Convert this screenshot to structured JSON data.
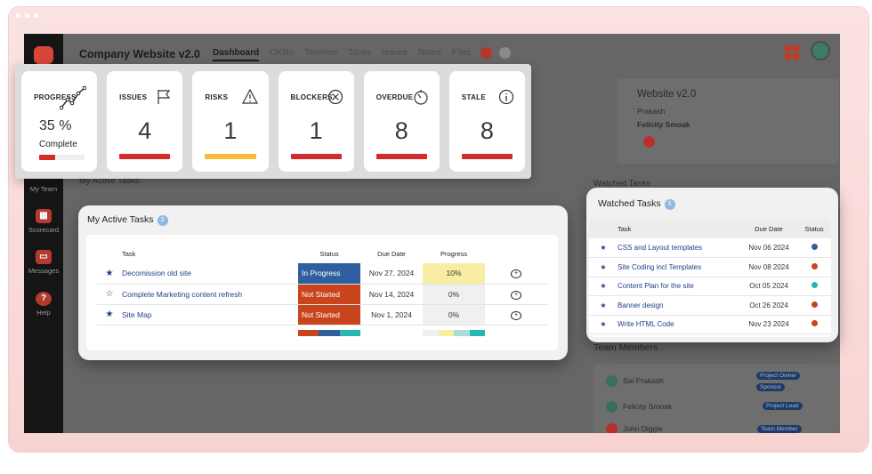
{
  "header": {
    "project_title": "Company Website v2.0",
    "tabs": [
      "Dashboard",
      "OKRs",
      "Timeline",
      "Tasks",
      "Issues",
      "Notes",
      "Files"
    ]
  },
  "sidebar": {
    "items": [
      {
        "label": "My Team",
        "icon": "team-icon"
      },
      {
        "label": "Scorecard",
        "icon": "scorecard-icon"
      },
      {
        "label": "Messages",
        "icon": "messages-icon"
      },
      {
        "label": "Help",
        "icon": "help-icon"
      }
    ]
  },
  "stats": {
    "progress": {
      "label": "PROGRESS",
      "value": "35 %",
      "caption": "Complete",
      "fraction": 0.35,
      "icon": "trend-line-icon",
      "color": "#d42a2a"
    },
    "cards": [
      {
        "key": "issues",
        "label": "ISSUES",
        "value": "4",
        "icon": "flag-icon",
        "color": "#d42a2a"
      },
      {
        "key": "risks",
        "label": "RISKS",
        "value": "1",
        "icon": "warning-icon",
        "color": "#f6bb3e"
      },
      {
        "key": "blockers",
        "label": "BLOCKERS",
        "value": "1",
        "icon": "blocked-icon",
        "color": "#d42a2a"
      },
      {
        "key": "overdue",
        "label": "OVERDUE",
        "value": "8",
        "icon": "timer-icon",
        "color": "#d42a2a"
      },
      {
        "key": "stale",
        "label": "STALE",
        "value": "8",
        "icon": "info-icon",
        "color": "#d42a2a"
      }
    ]
  },
  "active_tasks": {
    "title": "My Active Tasks",
    "count": "3",
    "columns": [
      "Task",
      "Status",
      "Due Date",
      "Progress"
    ],
    "rows": [
      {
        "task": "Decomission old site",
        "status": "In Progress",
        "status_color": "#2f5f9e",
        "due": "Nov 27, 2024",
        "progress": "10%",
        "progress_bg": "#f8eea3",
        "star": "★"
      },
      {
        "task": "Complete Marketing content refresh",
        "status": "Not Started",
        "status_color": "#c9431c",
        "due": "Nov 14, 2024",
        "progress": "0%",
        "progress_bg": "#f0f0f0",
        "star": "☆"
      },
      {
        "task": "Site Map",
        "status": "Not Started",
        "status_color": "#c9431c",
        "due": "Nov 1, 2024",
        "progress": "0%",
        "progress_bg": "#f0f0f0",
        "star": "★"
      }
    ],
    "status_summary": [
      "#c9431c",
      "#2f5f9e",
      "#26b8b0"
    ],
    "progress_summary": [
      "#f0f0f0",
      "#f8eea3",
      "#a8ded8",
      "#26b8b0"
    ]
  },
  "watched_tasks": {
    "title": "Watched Tasks",
    "count": "5",
    "columns": [
      "Task",
      "Due Date",
      "Status"
    ],
    "rows": [
      {
        "task": "CSS and Layout templates",
        "due": "Nov 06 2024",
        "status_color": "#2f5f9e"
      },
      {
        "task": "Site Coding incl Templates",
        "due": "Nov 08 2024",
        "status_color": "#c9431c"
      },
      {
        "task": "Content Plan for the site",
        "due": "Oct 05 2024",
        "status_color": "#26b8b0"
      },
      {
        "task": "Banner design",
        "due": "Oct 26 2024",
        "status_color": "#c9431c"
      },
      {
        "task": "Write HTML Code",
        "due": "Nov 23 2024",
        "status_color": "#c9431c"
      }
    ]
  },
  "background": {
    "project_card": {
      "title": "Website v2.0",
      "line1": "Prakash",
      "line2": "Felicity Smoak"
    },
    "my_active_heading": "My Active Tasks",
    "watched_heading": "Watched Tasks",
    "team": {
      "heading": "Team Members",
      "count": "5",
      "members": [
        {
          "name": "Sai Prakash",
          "roles": [
            "Project Owner",
            "Sponsor"
          ]
        },
        {
          "name": "Felicity Smoak",
          "roles": [
            "Project Lead"
          ]
        },
        {
          "name": "John Diggle",
          "roles": [
            "Team Member"
          ]
        }
      ]
    }
  }
}
